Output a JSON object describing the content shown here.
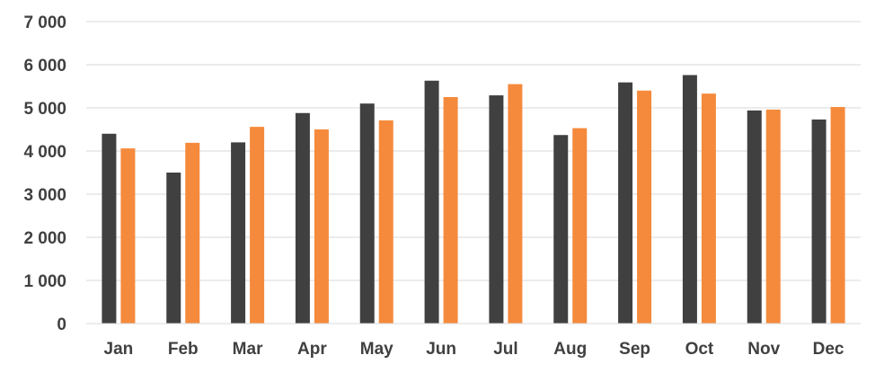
{
  "chart_data": {
    "type": "bar",
    "title": "",
    "xlabel": "",
    "ylabel": "",
    "categories": [
      "Jan",
      "Feb",
      "Mar",
      "Apr",
      "May",
      "Jun",
      "Jul",
      "Aug",
      "Sep",
      "Oct",
      "Nov",
      "Dec"
    ],
    "series": [
      {
        "color": "#404040",
        "values": [
          4400,
          3500,
          4200,
          4880,
          5100,
          5630,
          5290,
          4370,
          5590,
          5760,
          4940,
          4730
        ]
      },
      {
        "color": "#f58a3c",
        "values": [
          4060,
          4190,
          4560,
          4500,
          4710,
          5250,
          5550,
          4530,
          5400,
          5330,
          4960,
          5020
        ]
      }
    ],
    "ylim": [
      0,
      7000
    ],
    "yticks": [
      0,
      1000,
      2000,
      3000,
      4000,
      5000,
      6000,
      7000
    ],
    "ytick_labels": [
      "0",
      "1 000",
      "2 000",
      "3 000",
      "4 000",
      "5 000",
      "6 000",
      "7 000"
    ],
    "grid": true,
    "legend": "none"
  }
}
